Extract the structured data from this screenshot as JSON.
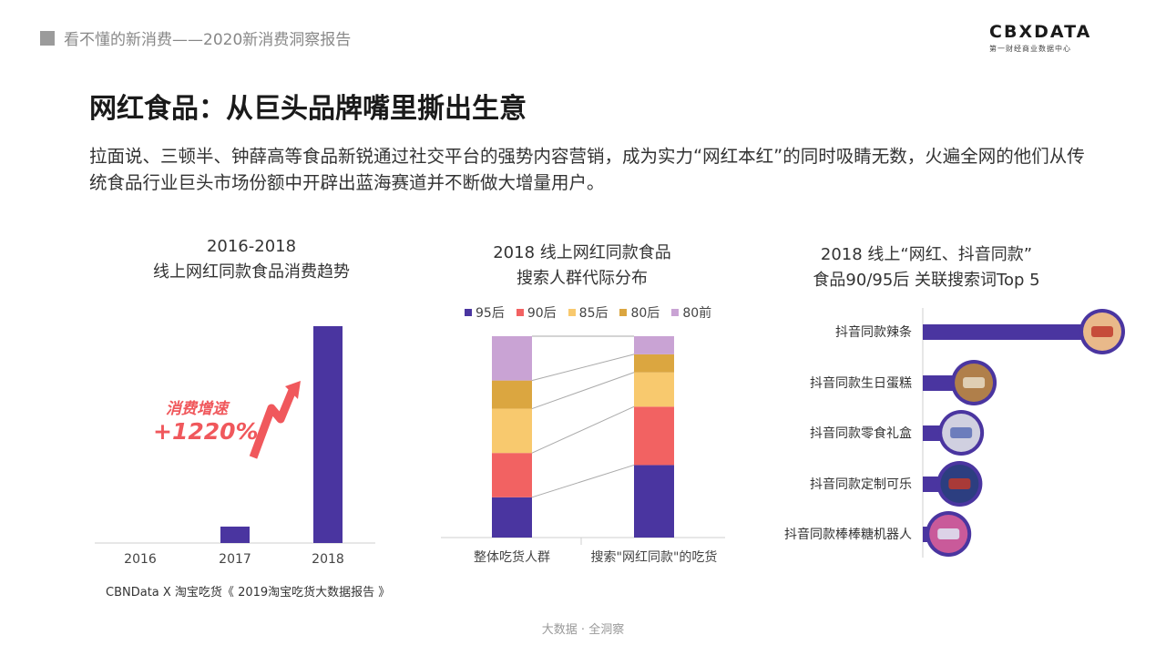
{
  "header": {
    "report_title": "看不懂的新消费——2020新消费洞察报告",
    "logo_main_left": "CB",
    "logo_main_x": "X",
    "logo_main_right": "DATA",
    "logo_sub": "第一财经商业数据中心"
  },
  "page_title": "网红食品：从巨头品牌嘴里撕出生意",
  "intro": "拉面说、三顿半、钟薛高等食品新锐通过社交平台的强势内容营销，成为实力“网红本红”的同时吸睛无数，火遍全网的他们从传统食品行业巨头市场份额中开辟出蓝海赛道并不断做大增量用户。",
  "source": "CBNData X 淘宝吃货《 2019淘宝吃货大数据报告 》",
  "footer": "大数据 · 全洞察",
  "colors": {
    "purple": "#4a35a0",
    "red": "#f26262",
    "yellow": "#f8c96e",
    "gold": "#dba640",
    "pink": "#c9a3d4",
    "arrow": "#f0585c"
  },
  "chart_data": [
    {
      "type": "bar",
      "title_line1": "2016-2018",
      "title_line2": "线上网红同款食品消费趋势",
      "categories": [
        "2016",
        "2017",
        "2018"
      ],
      "values": [
        0,
        1,
        13.2
      ],
      "annotation_label": "消费增速",
      "annotation_value": "+1220%"
    },
    {
      "type": "bar",
      "stacked": true,
      "percent": true,
      "title_line1": "2018 线上网红同款食品",
      "title_line2": "搜索人群代际分布",
      "categories": [
        "整体吃货人群",
        "搜索\"网红同款\"的吃货"
      ],
      "series": [
        {
          "name": "95后",
          "color": "#4a35a0",
          "values": [
            20,
            36
          ]
        },
        {
          "name": "90后",
          "color": "#f26262",
          "values": [
            22,
            29
          ]
        },
        {
          "name": "85后",
          "color": "#f8c96e",
          "values": [
            22,
            17
          ]
        },
        {
          "name": "80后",
          "color": "#dba640",
          "values": [
            14,
            9
          ]
        },
        {
          "name": "80前",
          "color": "#c9a3d4",
          "values": [
            22,
            9
          ]
        }
      ],
      "legend_position": "top"
    },
    {
      "type": "bar",
      "orientation": "horizontal",
      "title_line1": "2018 线上“网红、抖音同款”",
      "title_line2": "食品90/95后 关联搜索词Top 5",
      "categories": [
        "抖音同款辣条",
        "抖音同款生日蛋糕",
        "抖音同款零食礼盒",
        "抖音同款定制可乐",
        "抖音同款棒棒糖机器人"
      ],
      "values": [
        100,
        19,
        11,
        10,
        3
      ]
    }
  ]
}
